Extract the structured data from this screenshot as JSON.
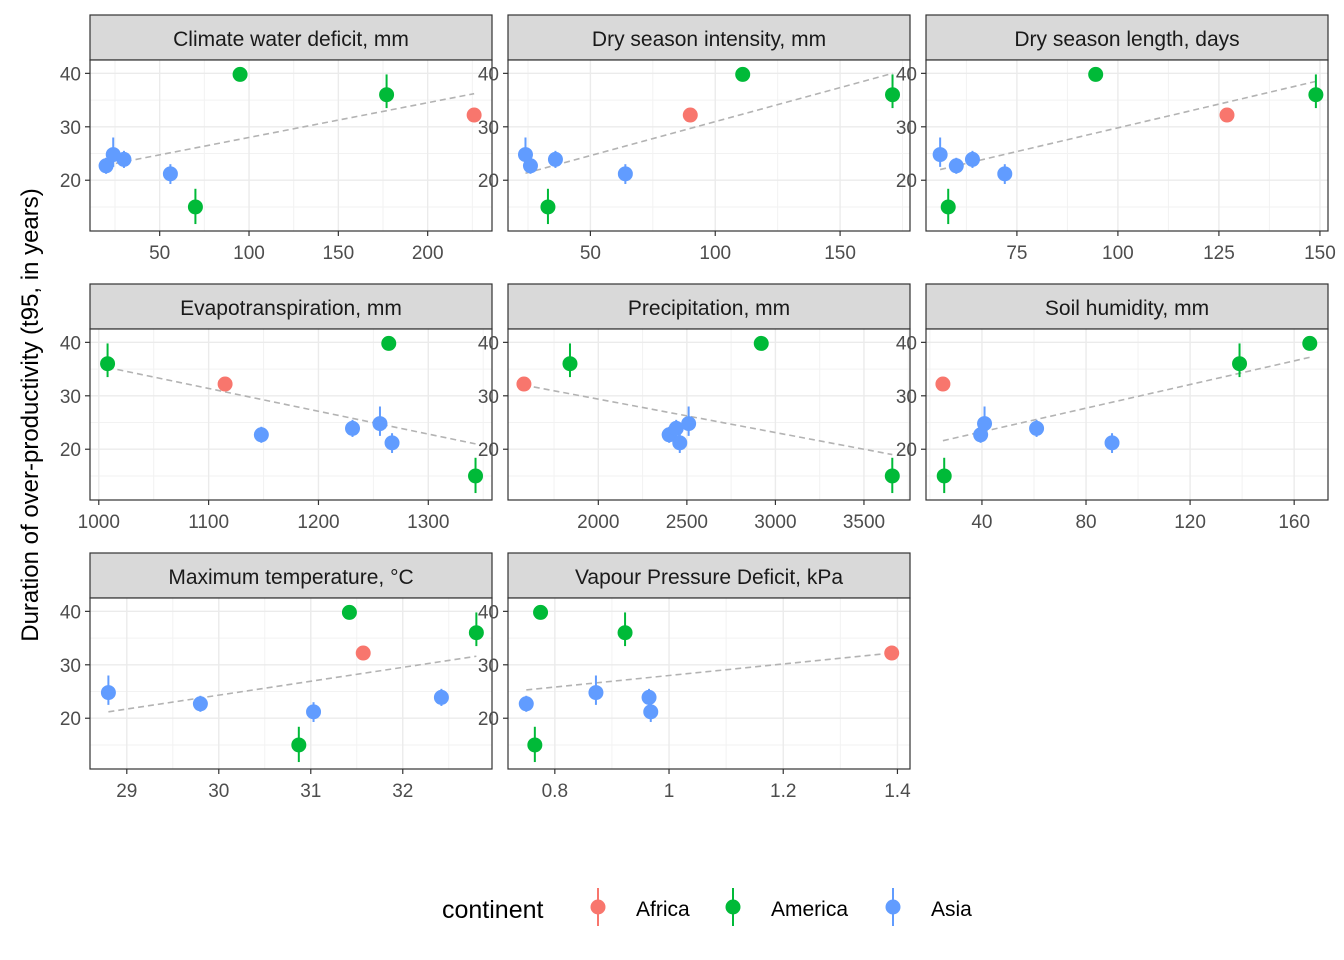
{
  "ylabel": "Duration of over-productivity (t95, in years)",
  "legend": {
    "title": "continent",
    "entries": [
      {
        "name": "Africa",
        "color": "#F8766D"
      },
      {
        "name": "America",
        "color": "#00BA38"
      },
      {
        "name": "Asia",
        "color": "#619CFF"
      }
    ]
  },
  "chart_data": [
    {
      "type": "scatter",
      "title": "Climate water deficit, mm",
      "xlim": [
        11,
        236
      ],
      "ylim": [
        10.5,
        42.5
      ],
      "xticks": [
        50,
        100,
        150,
        200
      ],
      "yticks": [
        20,
        30,
        40
      ],
      "trend": [
        [
          20,
          22.8
        ],
        [
          226,
          36.2
        ]
      ],
      "points": [
        {
          "x": 20,
          "y": 22.7,
          "lo": 21.2,
          "hi": 24.2,
          "continent": "Asia"
        },
        {
          "x": 24,
          "y": 24.8,
          "lo": 22.5,
          "hi": 28.0,
          "continent": "Asia"
        },
        {
          "x": 30,
          "y": 23.9,
          "lo": 22.3,
          "hi": 25.5,
          "continent": "Asia"
        },
        {
          "x": 56,
          "y": 21.2,
          "lo": 19.3,
          "hi": 23.0,
          "continent": "Asia"
        },
        {
          "x": 70,
          "y": 15.0,
          "lo": 11.8,
          "hi": 18.4,
          "continent": "America"
        },
        {
          "x": 95,
          "y": 39.8,
          "lo": 39.3,
          "hi": 40.2,
          "continent": "America"
        },
        {
          "x": 177,
          "y": 36.0,
          "lo": 33.5,
          "hi": 39.8,
          "continent": "America"
        },
        {
          "x": 226,
          "y": 32.2,
          "lo": 31.2,
          "hi": 33.2,
          "continent": "Africa"
        }
      ]
    },
    {
      "type": "scatter",
      "title": "Dry season intensity, mm",
      "xlim": [
        17,
        178
      ],
      "ylim": [
        10.5,
        42.5
      ],
      "xticks": [
        50,
        100,
        150
      ],
      "yticks": [
        20,
        30,
        40
      ],
      "trend": [
        [
          24,
          21.3
        ],
        [
          171,
          40.0
        ]
      ],
      "points": [
        {
          "x": 24,
          "y": 24.8,
          "lo": 22.5,
          "hi": 28.0,
          "continent": "Asia"
        },
        {
          "x": 26,
          "y": 22.7,
          "lo": 21.2,
          "hi": 24.2,
          "continent": "Asia"
        },
        {
          "x": 33,
          "y": 15.0,
          "lo": 11.8,
          "hi": 18.4,
          "continent": "America"
        },
        {
          "x": 36,
          "y": 23.9,
          "lo": 22.3,
          "hi": 25.5,
          "continent": "Asia"
        },
        {
          "x": 64,
          "y": 21.2,
          "lo": 19.3,
          "hi": 23.0,
          "continent": "Asia"
        },
        {
          "x": 90,
          "y": 32.2,
          "lo": 31.2,
          "hi": 33.2,
          "continent": "Africa"
        },
        {
          "x": 111,
          "y": 39.8,
          "lo": 39.3,
          "hi": 40.2,
          "continent": "America"
        },
        {
          "x": 171,
          "y": 36.0,
          "lo": 33.5,
          "hi": 39.8,
          "continent": "America"
        }
      ]
    },
    {
      "type": "scatter",
      "title": "Dry season length, days",
      "xlim": [
        52.5,
        152
      ],
      "ylim": [
        10.5,
        42.5
      ],
      "xticks": [
        75,
        100,
        125,
        150
      ],
      "yticks": [
        20,
        30,
        40
      ],
      "trend": [
        [
          56,
          22.0
        ],
        [
          149,
          38.5
        ]
      ],
      "points": [
        {
          "x": 56,
          "y": 24.8,
          "lo": 22.5,
          "hi": 28.0,
          "continent": "Asia"
        },
        {
          "x": 58,
          "y": 15.0,
          "lo": 11.8,
          "hi": 18.4,
          "continent": "America"
        },
        {
          "x": 60,
          "y": 22.7,
          "lo": 21.2,
          "hi": 24.2,
          "continent": "Asia"
        },
        {
          "x": 64,
          "y": 23.9,
          "lo": 22.3,
          "hi": 25.5,
          "continent": "Asia"
        },
        {
          "x": 72,
          "y": 21.2,
          "lo": 19.3,
          "hi": 23.0,
          "continent": "Asia"
        },
        {
          "x": 94.5,
          "y": 39.8,
          "lo": 39.3,
          "hi": 40.2,
          "continent": "America"
        },
        {
          "x": 127,
          "y": 32.2,
          "lo": 31.2,
          "hi": 33.2,
          "continent": "Africa"
        },
        {
          "x": 149,
          "y": 36.0,
          "lo": 33.5,
          "hi": 39.8,
          "continent": "America"
        }
      ]
    },
    {
      "type": "scatter",
      "title": "Evapotranspiration, mm",
      "xlim": [
        992,
        1358
      ],
      "ylim": [
        10.5,
        42.5
      ],
      "xticks": [
        1000,
        1100,
        1200,
        1300
      ],
      "yticks": [
        20,
        30,
        40
      ],
      "trend": [
        [
          1008,
          35.3
        ],
        [
          1343,
          21.0
        ]
      ],
      "points": [
        {
          "x": 1008,
          "y": 36.0,
          "lo": 33.5,
          "hi": 39.8,
          "continent": "America"
        },
        {
          "x": 1115,
          "y": 32.2,
          "lo": 31.2,
          "hi": 33.2,
          "continent": "Africa"
        },
        {
          "x": 1148,
          "y": 22.7,
          "lo": 21.2,
          "hi": 24.2,
          "continent": "Asia"
        },
        {
          "x": 1231,
          "y": 23.9,
          "lo": 22.3,
          "hi": 25.5,
          "continent": "Asia"
        },
        {
          "x": 1256,
          "y": 24.8,
          "lo": 22.5,
          "hi": 28.0,
          "continent": "Asia"
        },
        {
          "x": 1264,
          "y": 39.8,
          "lo": 39.3,
          "hi": 40.2,
          "continent": "America"
        },
        {
          "x": 1267,
          "y": 21.2,
          "lo": 19.3,
          "hi": 23.0,
          "continent": "Asia"
        },
        {
          "x": 1343,
          "y": 15.0,
          "lo": 11.8,
          "hi": 18.4,
          "continent": "America"
        }
      ]
    },
    {
      "type": "scatter",
      "title": "Precipitation, mm",
      "xlim": [
        1490,
        3760
      ],
      "ylim": [
        10.5,
        42.5
      ],
      "xticks": [
        2000,
        2500,
        3000,
        3500
      ],
      "yticks": [
        20,
        30,
        40
      ],
      "trend": [
        [
          1580,
          32.0
        ],
        [
          3660,
          19.0
        ]
      ],
      "points": [
        {
          "x": 1580,
          "y": 32.2,
          "lo": 31.2,
          "hi": 33.2,
          "continent": "Africa"
        },
        {
          "x": 1840,
          "y": 36.0,
          "lo": 33.5,
          "hi": 39.8,
          "continent": "America"
        },
        {
          "x": 2400,
          "y": 22.7,
          "lo": 21.2,
          "hi": 24.2,
          "continent": "Asia"
        },
        {
          "x": 2440,
          "y": 23.9,
          "lo": 22.3,
          "hi": 25.5,
          "continent": "Asia"
        },
        {
          "x": 2460,
          "y": 21.2,
          "lo": 19.3,
          "hi": 23.0,
          "continent": "Asia"
        },
        {
          "x": 2510,
          "y": 24.8,
          "lo": 22.5,
          "hi": 28.0,
          "continent": "Asia"
        },
        {
          "x": 2920,
          "y": 39.8,
          "lo": 39.3,
          "hi": 40.2,
          "continent": "America"
        },
        {
          "x": 3660,
          "y": 15.0,
          "lo": 11.8,
          "hi": 18.4,
          "continent": "America"
        }
      ]
    },
    {
      "type": "scatter",
      "title": "Soil humidity, mm",
      "xlim": [
        18.5,
        173
      ],
      "ylim": [
        10.5,
        42.5
      ],
      "xticks": [
        40,
        80,
        120,
        160
      ],
      "yticks": [
        20,
        30,
        40
      ],
      "trend": [
        [
          25,
          21.6
        ],
        [
          166,
          37.2
        ]
      ],
      "points": [
        {
          "x": 25,
          "y": 32.2,
          "lo": 31.2,
          "hi": 33.2,
          "continent": "Africa"
        },
        {
          "x": 25.5,
          "y": 15.0,
          "lo": 11.8,
          "hi": 18.4,
          "continent": "America"
        },
        {
          "x": 39.5,
          "y": 22.7,
          "lo": 21.2,
          "hi": 24.2,
          "continent": "Asia"
        },
        {
          "x": 41,
          "y": 24.8,
          "lo": 22.5,
          "hi": 28.0,
          "continent": "Asia"
        },
        {
          "x": 61,
          "y": 23.9,
          "lo": 22.3,
          "hi": 25.5,
          "continent": "Asia"
        },
        {
          "x": 90,
          "y": 21.2,
          "lo": 19.3,
          "hi": 23.0,
          "continent": "Asia"
        },
        {
          "x": 139,
          "y": 36.0,
          "lo": 33.5,
          "hi": 39.8,
          "continent": "America"
        },
        {
          "x": 166,
          "y": 39.8,
          "lo": 39.3,
          "hi": 40.2,
          "continent": "America"
        }
      ]
    },
    {
      "type": "scatter",
      "title": "Maximum temperature, °C",
      "xlim": [
        28.6,
        32.97
      ],
      "ylim": [
        10.5,
        42.5
      ],
      "xticks": [
        29,
        30,
        31,
        32
      ],
      "yticks": [
        20,
        30,
        40
      ],
      "trend": [
        [
          28.8,
          21.2
        ],
        [
          32.8,
          31.6
        ]
      ],
      "points": [
        {
          "x": 28.8,
          "y": 24.8,
          "lo": 22.5,
          "hi": 28.0,
          "continent": "Asia"
        },
        {
          "x": 29.8,
          "y": 22.7,
          "lo": 21.2,
          "hi": 24.2,
          "continent": "Asia"
        },
        {
          "x": 30.87,
          "y": 15.0,
          "lo": 11.8,
          "hi": 18.4,
          "continent": "America"
        },
        {
          "x": 31.03,
          "y": 21.2,
          "lo": 19.3,
          "hi": 23.0,
          "continent": "Asia"
        },
        {
          "x": 31.42,
          "y": 39.8,
          "lo": 39.3,
          "hi": 40.2,
          "continent": "America"
        },
        {
          "x": 31.57,
          "y": 32.2,
          "lo": 31.2,
          "hi": 33.2,
          "continent": "Africa"
        },
        {
          "x": 32.42,
          "y": 23.9,
          "lo": 22.3,
          "hi": 25.5,
          "continent": "Asia"
        },
        {
          "x": 32.8,
          "y": 36.0,
          "lo": 33.5,
          "hi": 39.8,
          "continent": "America"
        }
      ]
    },
    {
      "type": "scatter",
      "title": "Vapour Pressure Deficit, kPa",
      "xlim": [
        0.718,
        1.422
      ],
      "ylim": [
        10.5,
        42.5
      ],
      "xticks": [
        0.8,
        1.0,
        1.2,
        1.4
      ],
      "yticks": [
        20,
        30,
        40
      ],
      "trend": [
        [
          0.75,
          25.3
        ],
        [
          1.39,
          32.2
        ]
      ],
      "points": [
        {
          "x": 0.75,
          "y": 22.7,
          "lo": 21.2,
          "hi": 24.2,
          "continent": "Asia"
        },
        {
          "x": 0.765,
          "y": 15.0,
          "lo": 11.8,
          "hi": 18.4,
          "continent": "America"
        },
        {
          "x": 0.775,
          "y": 39.8,
          "lo": 39.3,
          "hi": 40.2,
          "continent": "America"
        },
        {
          "x": 0.872,
          "y": 24.8,
          "lo": 22.5,
          "hi": 28.0,
          "continent": "Asia"
        },
        {
          "x": 0.923,
          "y": 36.0,
          "lo": 33.5,
          "hi": 39.8,
          "continent": "America"
        },
        {
          "x": 0.965,
          "y": 23.9,
          "lo": 22.3,
          "hi": 25.5,
          "continent": "Asia"
        },
        {
          "x": 0.968,
          "y": 21.2,
          "lo": 19.3,
          "hi": 23.0,
          "continent": "Asia"
        },
        {
          "x": 1.39,
          "y": 32.2,
          "lo": 31.2,
          "hi": 33.2,
          "continent": "Africa"
        }
      ]
    }
  ]
}
